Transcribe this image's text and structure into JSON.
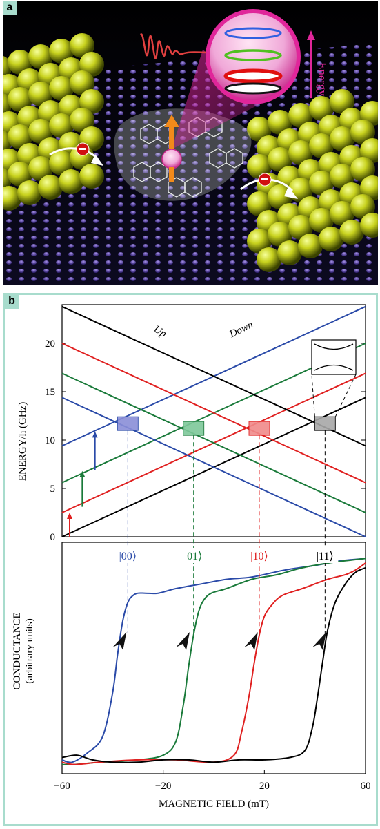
{
  "panel_a": {
    "tag": "a",
    "energy_label": "Energy",
    "colors": {
      "background": "#0a0a14",
      "gold": "#c8d21e",
      "molecule": "#e8f0e8",
      "pink": "#e0269a",
      "spin_arrow": "#f28a1a"
    }
  },
  "panel_b": {
    "tag": "b",
    "border_color": "#a8dccd"
  },
  "chart_data": [
    {
      "type": "line",
      "title": "",
      "xlabel": "",
      "ylabel": "ENERGY/h (GHz)",
      "xlim": [
        -60,
        60
      ],
      "ylim": [
        0,
        24
      ],
      "yticks": [
        0,
        5,
        10,
        15,
        20
      ],
      "series": [
        {
          "color": "#000000",
          "x": [
            -60,
            60
          ],
          "y": [
            0,
            14.4
          ]
        },
        {
          "color": "#e02020",
          "x": [
            -60,
            60
          ],
          "y": [
            2.5,
            16.9
          ]
        },
        {
          "color": "#1a7a3a",
          "x": [
            -60,
            60
          ],
          "y": [
            5.6,
            20.0
          ]
        },
        {
          "color": "#2a4aa8",
          "x": [
            -60,
            60
          ],
          "y": [
            9.4,
            23.8
          ]
        },
        {
          "color": "#2a4aa8",
          "x": [
            -60,
            60
          ],
          "y": [
            14.4,
            0
          ]
        },
        {
          "color": "#1a7a3a",
          "x": [
            -60,
            60
          ],
          "y": [
            16.9,
            2.5
          ]
        },
        {
          "color": "#e02020",
          "x": [
            -60,
            60
          ],
          "y": [
            20.0,
            5.6
          ]
        },
        {
          "color": "#000000",
          "x": [
            -60,
            60
          ],
          "y": [
            23.8,
            9.4
          ]
        }
      ],
      "annotations": [
        {
          "text": "Up",
          "x": -24,
          "y": 21.3
        },
        {
          "text": "Down",
          "x": 7,
          "y": 20.6
        }
      ],
      "transitions": [
        {
          "color": "#e02020",
          "x": -57,
          "y0": 0,
          "y1": 2.5
        },
        {
          "color": "#1a7a3a",
          "x": -52,
          "y0": 3.1,
          "y1": 6.8
        },
        {
          "color": "#2a4aa8",
          "x": -47,
          "y0": 6.9,
          "y1": 10.9
        }
      ],
      "crossings": [
        {
          "label": "|00⟩",
          "x": -34,
          "y": 11.7,
          "color": "#2a4aa8",
          "fill": "#8a8ed8"
        },
        {
          "label": "|01⟩",
          "x": -8,
          "y": 11.2,
          "color": "#1a7a3a",
          "fill": "#7ec89a"
        },
        {
          "label": "|10⟩",
          "x": 18,
          "y": 11.2,
          "color": "#e02020",
          "fill": "#f08a8a"
        },
        {
          "label": "|11⟩",
          "x": 44,
          "y": 11.7,
          "color": "#000000",
          "fill": "#a8a8a8"
        }
      ]
    },
    {
      "type": "line",
      "title": "",
      "xlabel": "MAGNETIC FIELD (mT)",
      "ylabel": "CONDUCTANCE",
      "ylabel2": "(arbitrary units)",
      "xlim": [
        -60,
        60
      ],
      "xticks": [
        -60,
        -20,
        20,
        60
      ],
      "xticklabels": [
        "−60",
        "−20",
        "20",
        "60"
      ],
      "ylim": [
        0,
        1
      ],
      "series": [
        {
          "color": "#2a4aa8",
          "x": [
            -60,
            -56,
            -50,
            -44,
            -40,
            -38,
            -36,
            -34,
            -32,
            -30,
            -27,
            -22,
            -15,
            -5,
            5,
            15,
            28,
            40,
            50,
            60
          ],
          "y": [
            0.06,
            0.05,
            0.09,
            0.16,
            0.35,
            0.52,
            0.66,
            0.74,
            0.77,
            0.78,
            0.78,
            0.78,
            0.8,
            0.82,
            0.84,
            0.85,
            0.88,
            0.9,
            0.92,
            0.93
          ]
        },
        {
          "color": "#1a7a3a",
          "x": [
            -60,
            -55,
            -45,
            -30,
            -20,
            -15,
            -12,
            -10,
            -8,
            -6,
            -4,
            -1,
            5,
            15,
            25,
            35,
            45,
            52,
            60
          ],
          "y": [
            0.04,
            0.04,
            0.05,
            0.06,
            0.08,
            0.14,
            0.3,
            0.46,
            0.6,
            0.7,
            0.75,
            0.78,
            0.8,
            0.84,
            0.86,
            0.89,
            0.91,
            0.92,
            0.93
          ]
        },
        {
          "color": "#e02020",
          "x": [
            -60,
            -55,
            -45,
            -30,
            -15,
            0,
            8,
            11,
            14,
            16,
            18,
            20,
            23,
            27,
            35,
            45,
            52,
            56,
            60
          ],
          "y": [
            0.05,
            0.04,
            0.05,
            0.06,
            0.06,
            0.05,
            0.08,
            0.18,
            0.34,
            0.48,
            0.6,
            0.68,
            0.73,
            0.77,
            0.8,
            0.84,
            0.86,
            0.88,
            0.91
          ]
        },
        {
          "color": "#000000",
          "x": [
            -60,
            -54,
            -48,
            -40,
            -30,
            -20,
            -10,
            0,
            10,
            20,
            30,
            36,
            39,
            41,
            43,
            45,
            48,
            52,
            56,
            60
          ],
          "y": [
            0.07,
            0.08,
            0.06,
            0.05,
            0.05,
            0.06,
            0.06,
            0.05,
            0.06,
            0.06,
            0.07,
            0.1,
            0.2,
            0.33,
            0.48,
            0.62,
            0.74,
            0.82,
            0.87,
            0.89
          ]
        }
      ],
      "markers": [
        {
          "color": "#2a4aa8",
          "x": -37,
          "y": 0.57
        },
        {
          "color": "#1a7a3a",
          "x": -12,
          "y": 0.57
        },
        {
          "color": "#e02020",
          "x": 15,
          "y": 0.57
        },
        {
          "color": "#000000",
          "x": 42,
          "y": 0.57
        }
      ]
    }
  ]
}
